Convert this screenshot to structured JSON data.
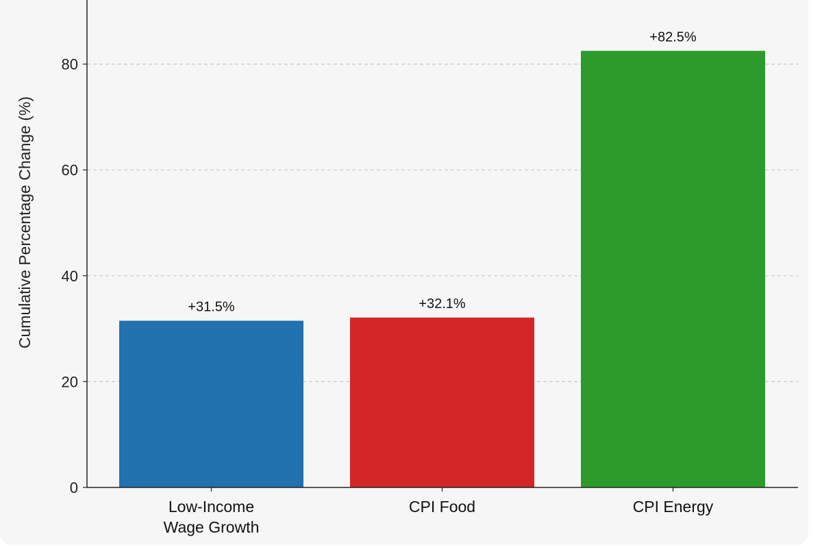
{
  "chart_data": {
    "type": "bar",
    "title": "",
    "xlabel": "",
    "ylabel": "Cumulative Percentage Change (%)",
    "ylim": [
      0,
      90
    ],
    "yticks": [
      "0",
      "20",
      "40",
      "60",
      "80"
    ],
    "grid": "horizontal dashed",
    "categories": [
      [
        "Low-Income",
        "Wage Growth"
      ],
      [
        "CPI Food"
      ],
      [
        "CPI Energy"
      ]
    ],
    "values": [
      31.5,
      32.1,
      82.5
    ],
    "value_labels": [
      "+31.5%",
      "+32.1%",
      "+82.5%"
    ],
    "colors": [
      "#2172ae",
      "#d42527",
      "#2c9b2c"
    ]
  }
}
